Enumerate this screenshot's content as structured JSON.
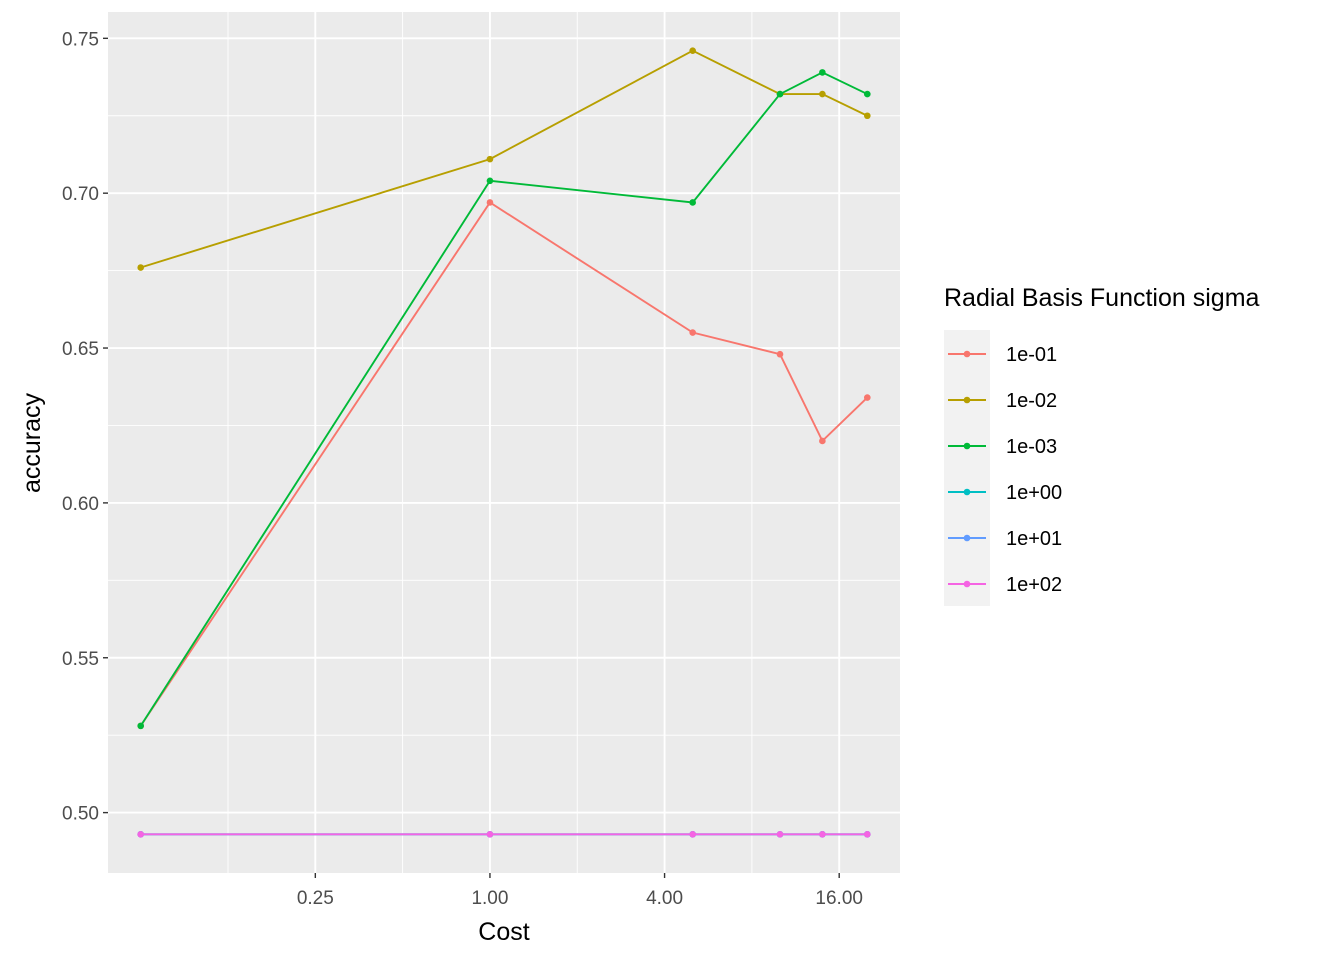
{
  "chart_data": {
    "type": "line",
    "xlabel": "Cost",
    "ylabel": "accuracy",
    "x_scale": "log2",
    "x": [
      0.0625,
      1,
      5,
      10,
      14,
      20
    ],
    "x_ticks": [
      0.25,
      1,
      4,
      16
    ],
    "x_tick_labels": [
      "0.25",
      "1.00",
      "4.00",
      "16.00"
    ],
    "xlim": [
      0.0625,
      20
    ],
    "y_ticks": [
      0.5,
      0.55,
      0.6,
      0.65,
      0.7,
      0.75
    ],
    "y_tick_labels": [
      "0.50",
      "0.55",
      "0.60",
      "0.65",
      "0.70",
      "0.75"
    ],
    "ylim": [
      0.4805,
      0.7585
    ],
    "grid": true,
    "legend": {
      "title": "Radial Basis Function sigma",
      "position": "right"
    },
    "series": [
      {
        "name": "1e-01",
        "color": "#F8766D",
        "x": [
          0.0625,
          1,
          5,
          10,
          14,
          20
        ],
        "y": [
          0.528,
          0.697,
          0.655,
          0.648,
          0.62,
          0.634
        ]
      },
      {
        "name": "1e-02",
        "color": "#B79F00",
        "x": [
          0.0625,
          1,
          5,
          10,
          14,
          20
        ],
        "y": [
          0.676,
          0.711,
          0.746,
          0.732,
          0.732,
          0.725
        ]
      },
      {
        "name": "1e-03",
        "color": "#00BA38",
        "x": [
          0.0625,
          1,
          5,
          10,
          14,
          20
        ],
        "y": [
          0.528,
          0.704,
          0.697,
          0.732,
          0.739,
          0.732
        ]
      },
      {
        "name": "1e+00",
        "color": "#00BFC4",
        "x": [
          0.0625,
          1,
          5,
          10,
          14,
          20
        ],
        "y": [
          0.493,
          0.493,
          0.493,
          0.493,
          0.493,
          0.493
        ]
      },
      {
        "name": "1e+01",
        "color": "#619CFF",
        "x": [
          0.0625,
          1,
          5,
          10,
          14,
          20
        ],
        "y": [
          0.493,
          0.493,
          0.493,
          0.493,
          0.493,
          0.493
        ]
      },
      {
        "name": "1e+02",
        "color": "#F564E3",
        "x": [
          0.0625,
          1,
          5,
          10,
          14,
          20
        ],
        "y": [
          0.493,
          0.493,
          0.493,
          0.493,
          0.493,
          0.493
        ]
      }
    ]
  }
}
